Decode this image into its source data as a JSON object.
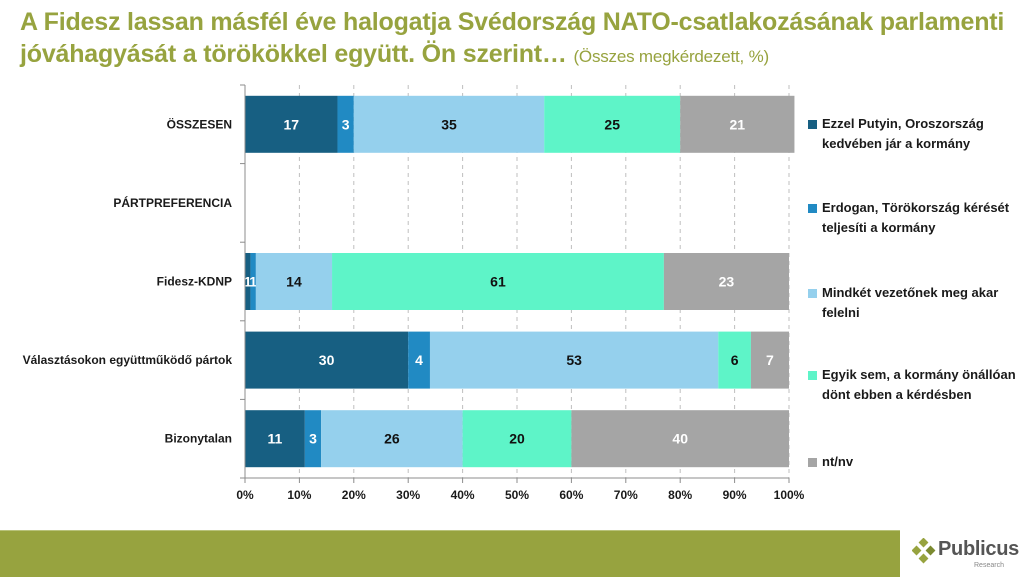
{
  "title": {
    "main": "A Fidesz lassan másfél éve halogatja Svédország NATO-csatlakozásának parlamenti jóváhagyását a törökökkel együtt. Ön szerint…",
    "subtitle": "(Összes megkérdezett, %)"
  },
  "colors": {
    "brand": "#97a33f",
    "series": [
      "#175f82",
      "#218ac3",
      "#95d0ed",
      "#5ef4c8",
      "#a5a5a5"
    ]
  },
  "chart_data": {
    "type": "bar",
    "orientation": "horizontal",
    "stacked": "percent",
    "title": "A Fidesz lassan másfél éve halogatja Svédország NATO-csatlakozásának parlamenti jóváhagyását a törökökkel együtt. Ön szerint…",
    "subtitle": "(Összes megkérdezett, %)",
    "xlabel": "",
    "ylabel": "",
    "xlim": [
      0,
      100
    ],
    "x_ticks": [
      "0%",
      "10%",
      "20%",
      "30%",
      "40%",
      "50%",
      "60%",
      "70%",
      "80%",
      "90%",
      "100%"
    ],
    "grid": "vertical dashed",
    "legend_position": "right",
    "categories": [
      "ÖSSZESEN",
      "PÁRTPREFERENCIA",
      "Fidesz-KDNP",
      "Választásokon együttműködő pártok",
      "Bizonytalan"
    ],
    "series": [
      {
        "name": "Ezzel Putyin, Oroszország kedvében jár a kormány",
        "values": [
          17,
          null,
          1,
          30,
          11
        ]
      },
      {
        "name": "Erdogan, Törökország kérését teljesíti a kormány",
        "values": [
          3,
          null,
          1,
          4,
          3
        ]
      },
      {
        "name": "Mindkét vezetőnek meg akar felelni",
        "values": [
          35,
          null,
          14,
          53,
          26
        ]
      },
      {
        "name": "Egyik sem, a kormány önállóan dönt ebben a kérdésben",
        "values": [
          25,
          null,
          61,
          6,
          20
        ]
      },
      {
        "name": "nt/nv",
        "values": [
          21,
          null,
          23,
          7,
          40
        ]
      }
    ]
  },
  "logo": {
    "name": "Publicus",
    "sub": "Research"
  }
}
